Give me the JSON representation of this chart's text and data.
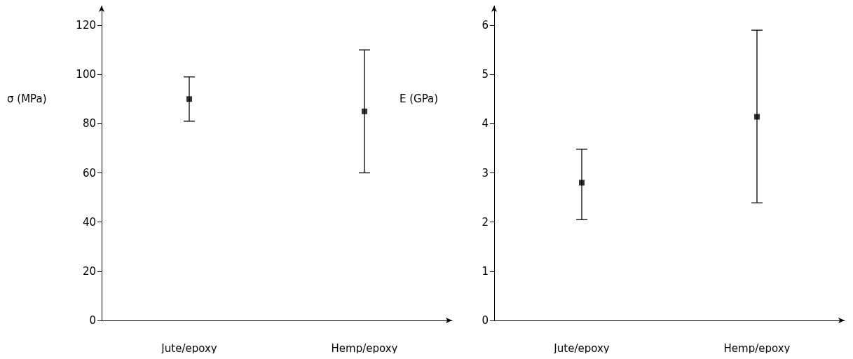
{
  "chart_data": [
    {
      "type": "scatter",
      "ylabel": "σ (MPa)",
      "categories": [
        "Jute/epoxy",
        "Hemp/epoxy"
      ],
      "values": [
        90,
        85
      ],
      "errors": [
        [
          81,
          99
        ],
        [
          60,
          110
        ]
      ],
      "color": "#000000",
      "marker": "square",
      "ylim": [
        0,
        128
      ],
      "yticks": [
        0,
        20,
        40,
        60,
        80,
        100,
        120
      ]
    },
    {
      "type": "scatter",
      "ylabel": "E (GPa)",
      "categories": [
        "Jute/epoxy",
        "Hemp/epoxy"
      ],
      "values": [
        2.8,
        4.14
      ],
      "errors": [
        [
          2.05,
          3.48
        ],
        [
          2.39,
          5.9
        ]
      ],
      "color": "#000000",
      "marker": "square",
      "ylim": [
        0,
        6.4
      ],
      "yticks": [
        0,
        1,
        2,
        3,
        4,
        5,
        6
      ]
    }
  ]
}
